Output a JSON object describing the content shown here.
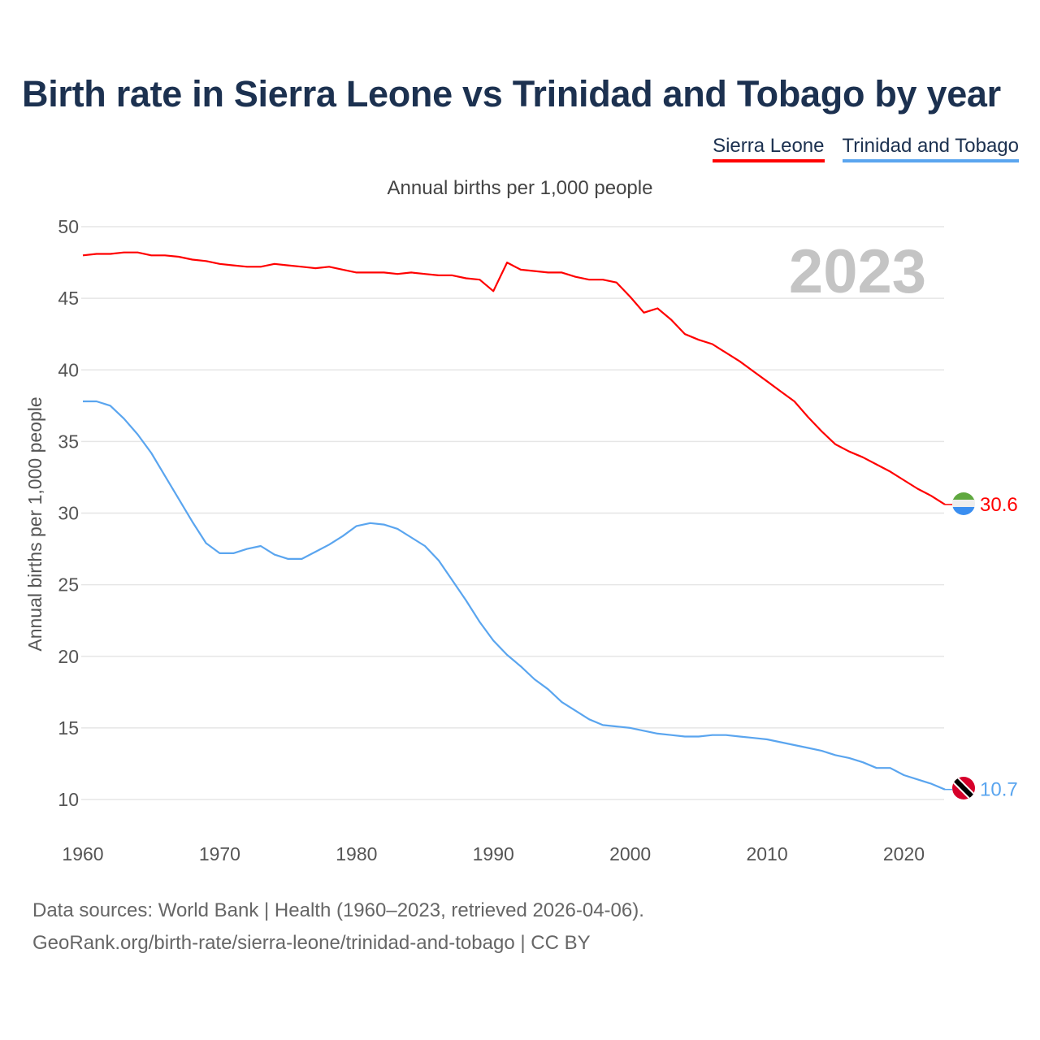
{
  "title": "Birth rate in Sierra Leone vs Trinidad and Tobago by year",
  "legend": [
    "Sierra Leone",
    "Trinidad and Tobago"
  ],
  "subtitle": "Annual births per 1,000 people",
  "year_watermark": "2023",
  "footer": {
    "line1": "Data sources: World Bank | Health (1960–2023, retrieved 2026-04-06).",
    "line2": "GeoRank.org/birth-rate/sierra-leone/trinidad-and-tobago | CC BY"
  },
  "chart_data": {
    "type": "line",
    "title": "Birth rate in Sierra Leone vs Trinidad and Tobago by year",
    "xlabel": "",
    "ylabel": "Annual births per 1,000 people",
    "xlim": [
      1960,
      2023
    ],
    "ylim": [
      10,
      50
    ],
    "xticks": [
      1960,
      1970,
      1980,
      1990,
      2000,
      2010,
      2020
    ],
    "yticks": [
      10,
      15,
      20,
      25,
      30,
      35,
      40,
      45,
      50
    ],
    "grid": true,
    "legend_position": "top-right",
    "x_start": 1960,
    "series": [
      {
        "name": "Sierra Leone",
        "color": "#ff0000",
        "flag": "sierra-leone-flag-icon",
        "end_label": "30.6",
        "values": [
          48.0,
          48.1,
          48.1,
          48.2,
          48.2,
          48.0,
          48.0,
          47.9,
          47.7,
          47.6,
          47.4,
          47.3,
          47.2,
          47.2,
          47.4,
          47.3,
          47.2,
          47.1,
          47.2,
          47.0,
          46.8,
          46.8,
          46.8,
          46.7,
          46.8,
          46.7,
          46.6,
          46.6,
          46.4,
          46.3,
          45.5,
          47.5,
          47.0,
          46.9,
          46.8,
          46.8,
          46.5,
          46.3,
          46.3,
          46.1,
          45.1,
          44.0,
          44.3,
          43.5,
          42.5,
          42.1,
          41.8,
          41.2,
          40.6,
          39.9,
          39.2,
          38.5,
          37.8,
          36.7,
          35.7,
          34.8,
          34.3,
          33.9,
          33.4,
          32.9,
          32.3,
          31.7,
          31.2,
          30.6
        ]
      },
      {
        "name": "Trinidad and Tobago",
        "color": "#5aa5ef",
        "flag": "trinidad-and-tobago-flag-icon",
        "end_label": "10.7",
        "values": [
          37.8,
          37.8,
          37.5,
          36.6,
          35.5,
          34.2,
          32.6,
          31.0,
          29.4,
          27.9,
          27.2,
          27.2,
          27.5,
          27.7,
          27.1,
          26.8,
          26.8,
          27.3,
          27.8,
          28.4,
          29.1,
          29.3,
          29.2,
          28.9,
          28.3,
          27.7,
          26.7,
          25.3,
          23.9,
          22.4,
          21.1,
          20.1,
          19.3,
          18.4,
          17.7,
          16.8,
          16.2,
          15.6,
          15.2,
          15.1,
          15.0,
          14.8,
          14.6,
          14.5,
          14.4,
          14.4,
          14.5,
          14.5,
          14.4,
          14.3,
          14.2,
          14.0,
          13.8,
          13.6,
          13.4,
          13.1,
          12.9,
          12.6,
          12.2,
          12.2,
          11.7,
          11.4,
          11.1,
          10.7
        ]
      }
    ]
  }
}
